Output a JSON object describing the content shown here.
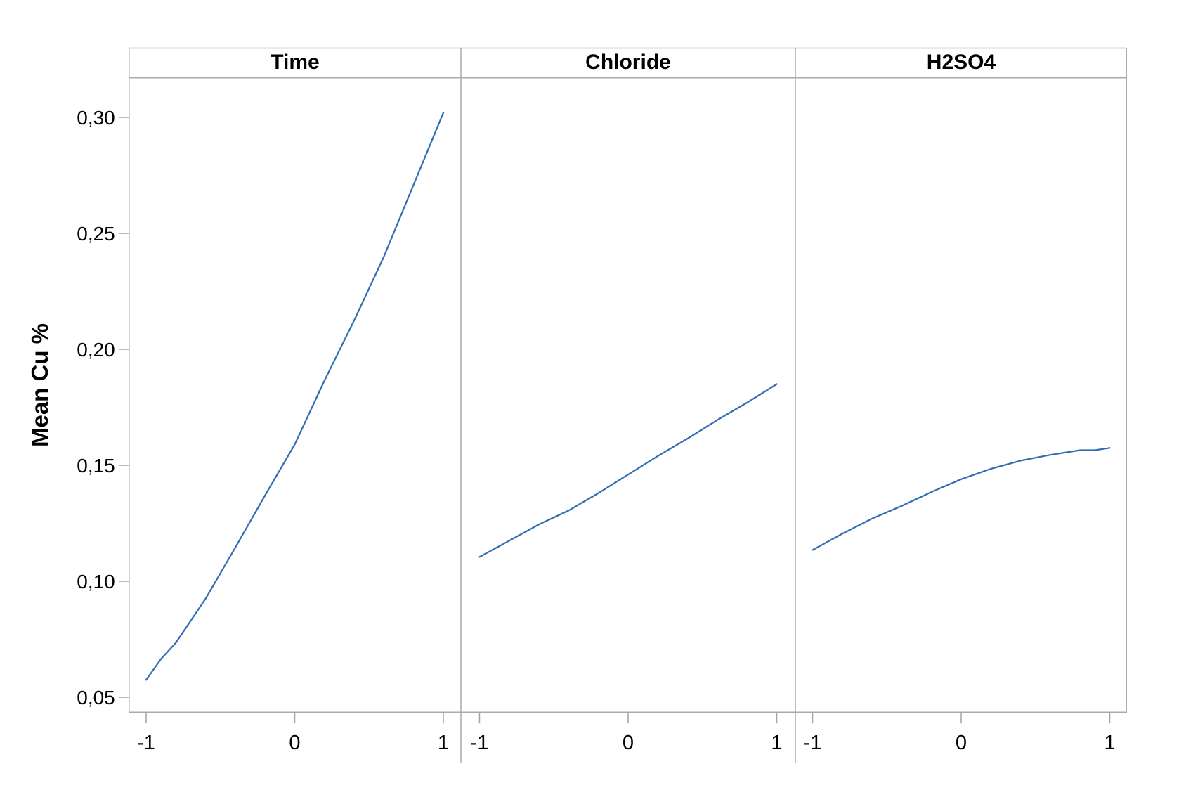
{
  "chart_data": {
    "type": "line",
    "title": "",
    "ylabel": "Mean Cu %",
    "xlabel": "",
    "grid": false,
    "legend": "none",
    "line_color": "#316eb2",
    "axis_color": "#ababab",
    "tick_color": "#a3a3a3",
    "text_color": "#000000",
    "ylim": [
      0.044,
      0.317
    ],
    "xlim_per_panel": [
      -1.12,
      1.12
    ],
    "y_ticks": [
      {
        "label": "0,30",
        "value": 0.3
      },
      {
        "label": "0,25",
        "value": 0.25
      },
      {
        "label": "0,20",
        "value": 0.2
      },
      {
        "label": "0,15",
        "value": 0.15
      },
      {
        "label": "0,10",
        "value": 0.1
      },
      {
        "label": "0,05",
        "value": 0.05
      }
    ],
    "x_ticks": [
      {
        "label": "-1",
        "value": -1
      },
      {
        "label": "0",
        "value": 0
      },
      {
        "label": "1",
        "value": 1
      }
    ],
    "panels": [
      {
        "label": "Time",
        "points": [
          [
            -1,
            0.0575
          ],
          [
            -0.9,
            0.0665
          ],
          [
            -0.8,
            0.0735
          ],
          [
            -0.6,
            0.0925
          ],
          [
            -0.4,
            0.1145
          ],
          [
            -0.2,
            0.137
          ],
          [
            0,
            0.159
          ],
          [
            0.2,
            0.1865
          ],
          [
            0.4,
            0.2125
          ],
          [
            0.6,
            0.24
          ],
          [
            0.8,
            0.271
          ],
          [
            1,
            0.302
          ]
        ]
      },
      {
        "label": "Chloride",
        "points": [
          [
            -1,
            0.1105
          ],
          [
            -0.8,
            0.1175
          ],
          [
            -0.6,
            0.1245
          ],
          [
            -0.4,
            0.1305
          ],
          [
            -0.2,
            0.138
          ],
          [
            0,
            0.146
          ],
          [
            0.2,
            0.154
          ],
          [
            0.4,
            0.1615
          ],
          [
            0.6,
            0.1695
          ],
          [
            0.8,
            0.177
          ],
          [
            1,
            0.185
          ]
        ]
      },
      {
        "label": "H2SO4",
        "points": [
          [
            -1,
            0.1135
          ],
          [
            -0.8,
            0.1205
          ],
          [
            -0.6,
            0.127
          ],
          [
            -0.4,
            0.1325
          ],
          [
            -0.2,
            0.1385
          ],
          [
            0,
            0.144
          ],
          [
            0.2,
            0.1485
          ],
          [
            0.4,
            0.152
          ],
          [
            0.6,
            0.1545
          ],
          [
            0.8,
            0.1565
          ],
          [
            0.9,
            0.1565
          ],
          [
            1,
            0.1575
          ]
        ]
      }
    ]
  }
}
